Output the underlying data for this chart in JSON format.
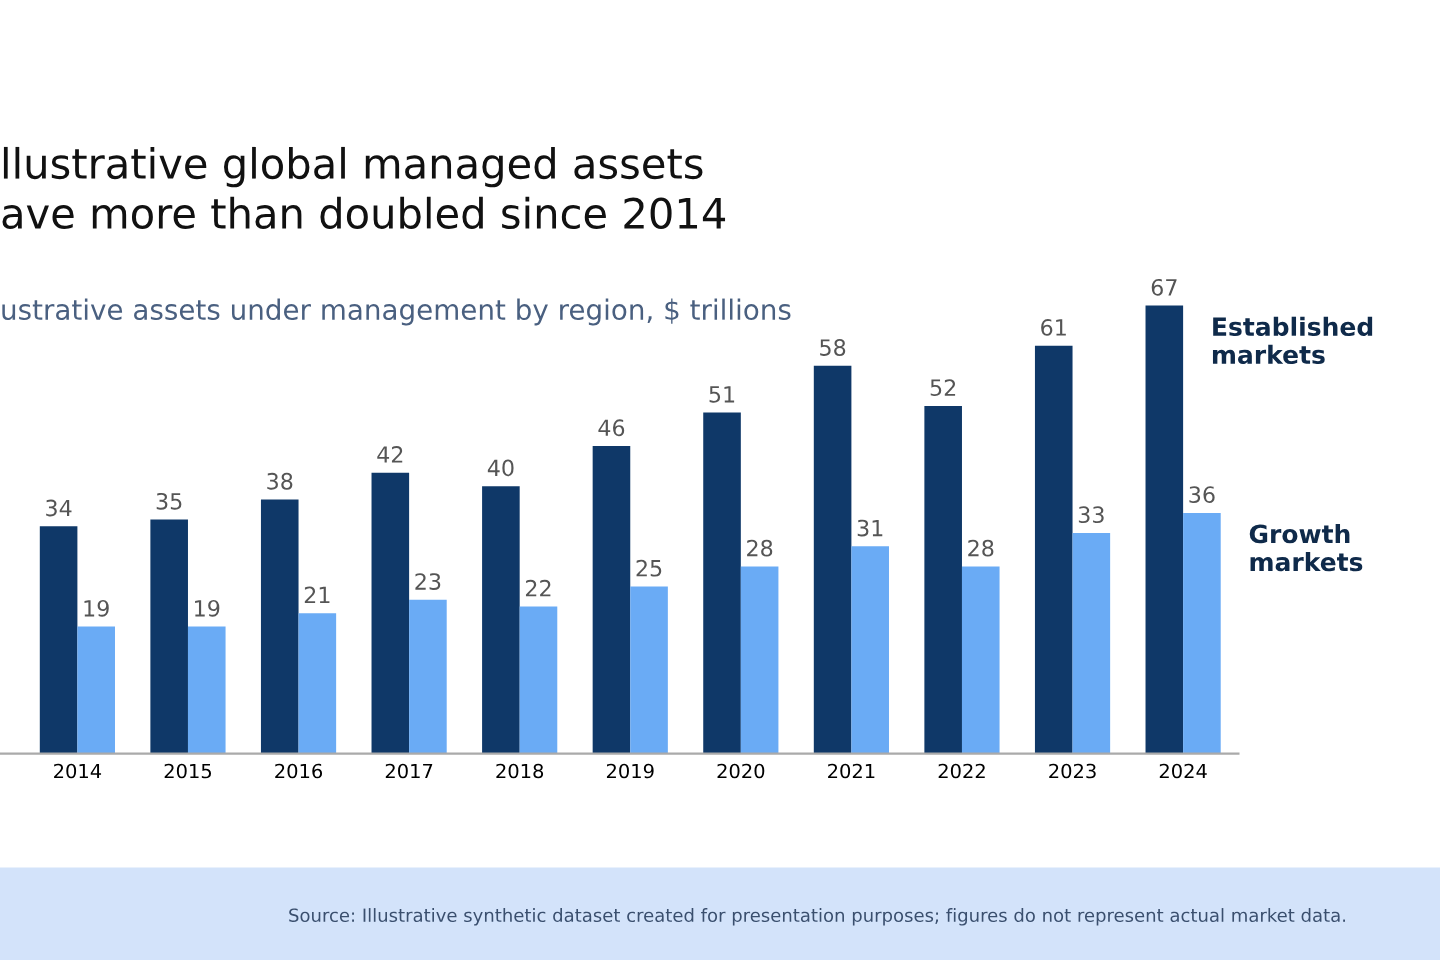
{
  "chart_data": {
    "type": "bar",
    "title": "llustrative global managed assets\nave more than doubled since 2014",
    "subtitle": "ustrative assets under management by region, $ trillions",
    "categories": [
      "2014",
      "2015",
      "2016",
      "2017",
      "2018",
      "2019",
      "2020",
      "2021",
      "2022",
      "2023",
      "2024"
    ],
    "series": [
      {
        "name": "Established markets",
        "color": "#0f3868",
        "values": [
          34,
          35,
          38,
          42,
          40,
          46,
          51,
          58,
          52,
          61,
          67
        ]
      },
      {
        "name": "Growth markets",
        "color": "#6aabf5",
        "values": [
          19,
          19,
          21,
          23,
          22,
          25,
          28,
          31,
          28,
          33,
          36
        ]
      }
    ],
    "data_labels": true,
    "grid": false,
    "legend": false,
    "annotations": [
      "Source: Illustrative synthetic dataset created for presentation purposes; figures do not represent actual market data."
    ]
  }
}
